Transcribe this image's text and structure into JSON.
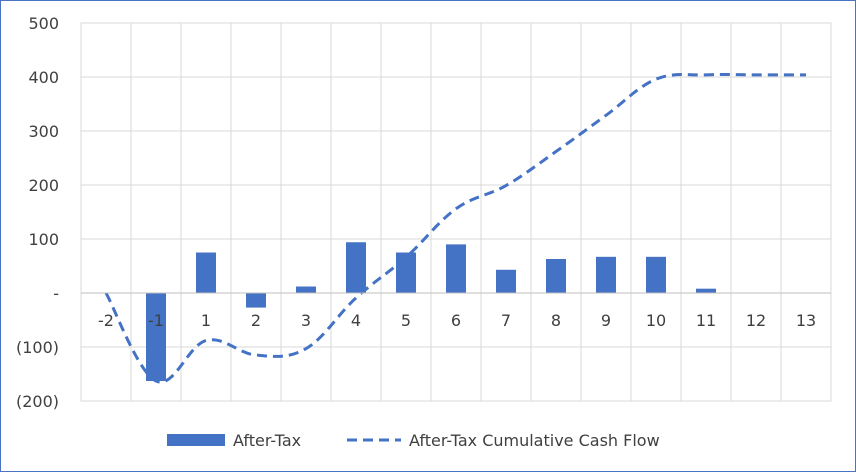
{
  "chart_data": {
    "type": "bar",
    "title": "",
    "xlabel": "",
    "ylabel": "",
    "categories": [
      "-2",
      "-1",
      "1",
      "2",
      "3",
      "4",
      "5",
      "6",
      "7",
      "8",
      "9",
      "10",
      "11",
      "12",
      "13"
    ],
    "ylim": [
      -200,
      500
    ],
    "yticks": [
      -200,
      -100,
      0,
      100,
      200,
      300,
      400,
      500
    ],
    "ytick_labels": [
      "(200)",
      "(100)",
      "-",
      "100",
      "200",
      "300",
      "400",
      "500"
    ],
    "grid": "vertical and horizontal major gridlines",
    "legend_position": "bottom",
    "series": [
      {
        "name": "After-Tax",
        "type": "bar",
        "color": "#4472c4",
        "values": [
          0,
          -163,
          75,
          -27,
          12,
          94,
          75,
          90,
          43,
          63,
          67,
          67,
          8,
          0,
          0
        ]
      },
      {
        "name": "After-Tax Cumulative Cash Flow",
        "type": "line",
        "style": "dashed",
        "color": "#4472c4",
        "values": [
          0,
          -163,
          -88,
          -115,
          -103,
          -9,
          66,
          156,
          199,
          262,
          329,
          396,
          404,
          404,
          404
        ]
      }
    ]
  }
}
